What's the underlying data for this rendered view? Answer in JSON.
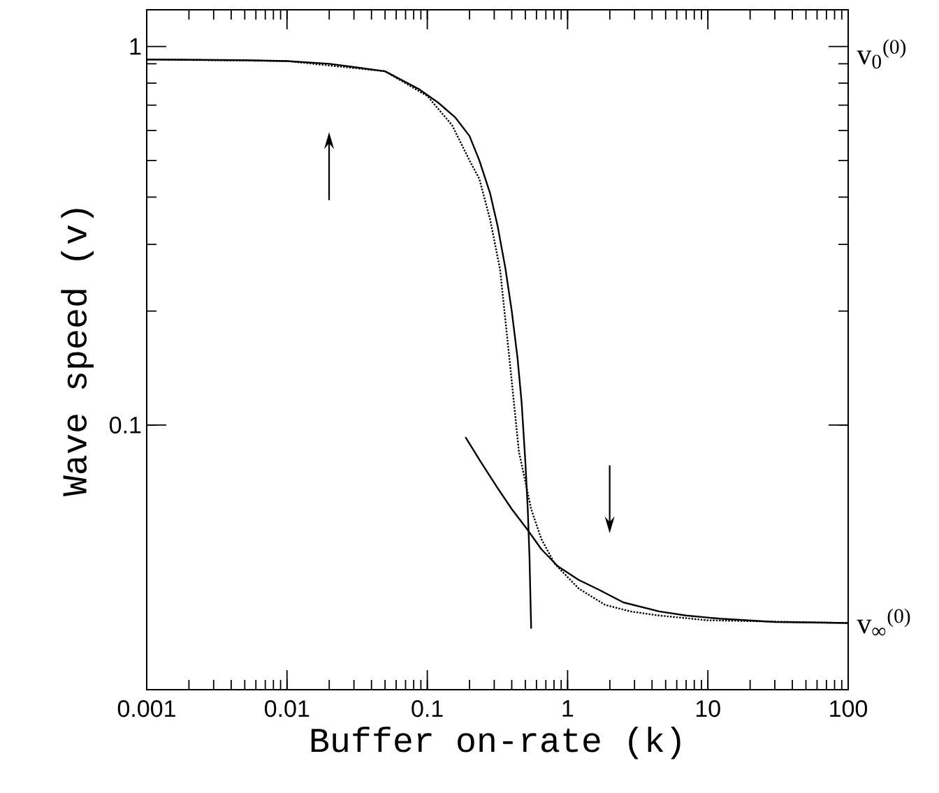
{
  "chart_data": {
    "type": "line",
    "xlabel": "Buffer on-rate (k)",
    "ylabel": "Wave speed (v)",
    "log": "xy",
    "marker": "none",
    "xlim": [
      0.001,
      100
    ],
    "xticks": [
      0.001,
      0.01,
      0.1,
      1,
      10,
      100
    ],
    "ylim": [
      0.02,
      1.25
    ],
    "yticks": [
      0.1,
      1
    ],
    "annotations": [
      "v$_{0}$$^{(0)}$",
      {
        "text": "v$_{∞}$$^{(0)}$",
        "x": 100,
        "y": 0.03
      }
    ],
    "series": [
      {
        "color": "#000000",
        "line_style": "solid",
        "x": [
          0.001,
          0.005,
          0.01,
          0.02,
          0.05,
          0.088,
          0.12,
          0.158,
          0.2,
          0.235,
          0.28,
          0.318,
          0.36,
          0.4,
          0.44,
          0.47,
          0.5,
          0.52,
          0.535,
          0.55
        ],
        "values": [
          0.924,
          0.92,
          0.915,
          0.9,
          0.86,
          0.77,
          0.71,
          0.65,
          0.58,
          0.5,
          0.41,
          0.334,
          0.26,
          0.2,
          0.15,
          0.115,
          0.08,
          0.06,
          0.045,
          0.029
        ]
      },
      {
        "color": "#000000",
        "line_style": "dotted",
        "x": [
          0.001,
          0.01,
          0.05,
          0.1,
          0.15,
          0.2,
          0.235,
          0.28,
          0.33,
          0.385,
          0.45,
          0.55,
          0.65,
          0.81,
          1.2,
          1.85,
          2.8,
          4.5,
          10,
          100
        ],
        "values": [
          0.924,
          0.915,
          0.86,
          0.74,
          0.62,
          0.5,
          0.447,
          0.35,
          0.258,
          0.15,
          0.085,
          0.06,
          0.05,
          0.043,
          0.037,
          0.0335,
          0.0322,
          0.0314,
          0.0305,
          0.03
        ]
      },
      {
        "color": "#000000",
        "line_style": "solid",
        "x": [
          0.187,
          0.24,
          0.317,
          0.4,
          0.52,
          0.65,
          0.85,
          1.2,
          1.68,
          2.5,
          4.5,
          7,
          12.2,
          30,
          100
        ],
        "values": [
          0.093,
          0.08,
          0.0682,
          0.06,
          0.0528,
          0.047,
          0.0424,
          0.039,
          0.0367,
          0.034,
          0.0322,
          0.0314,
          0.0308,
          0.0302,
          0.03
        ]
      }
    ]
  }
}
